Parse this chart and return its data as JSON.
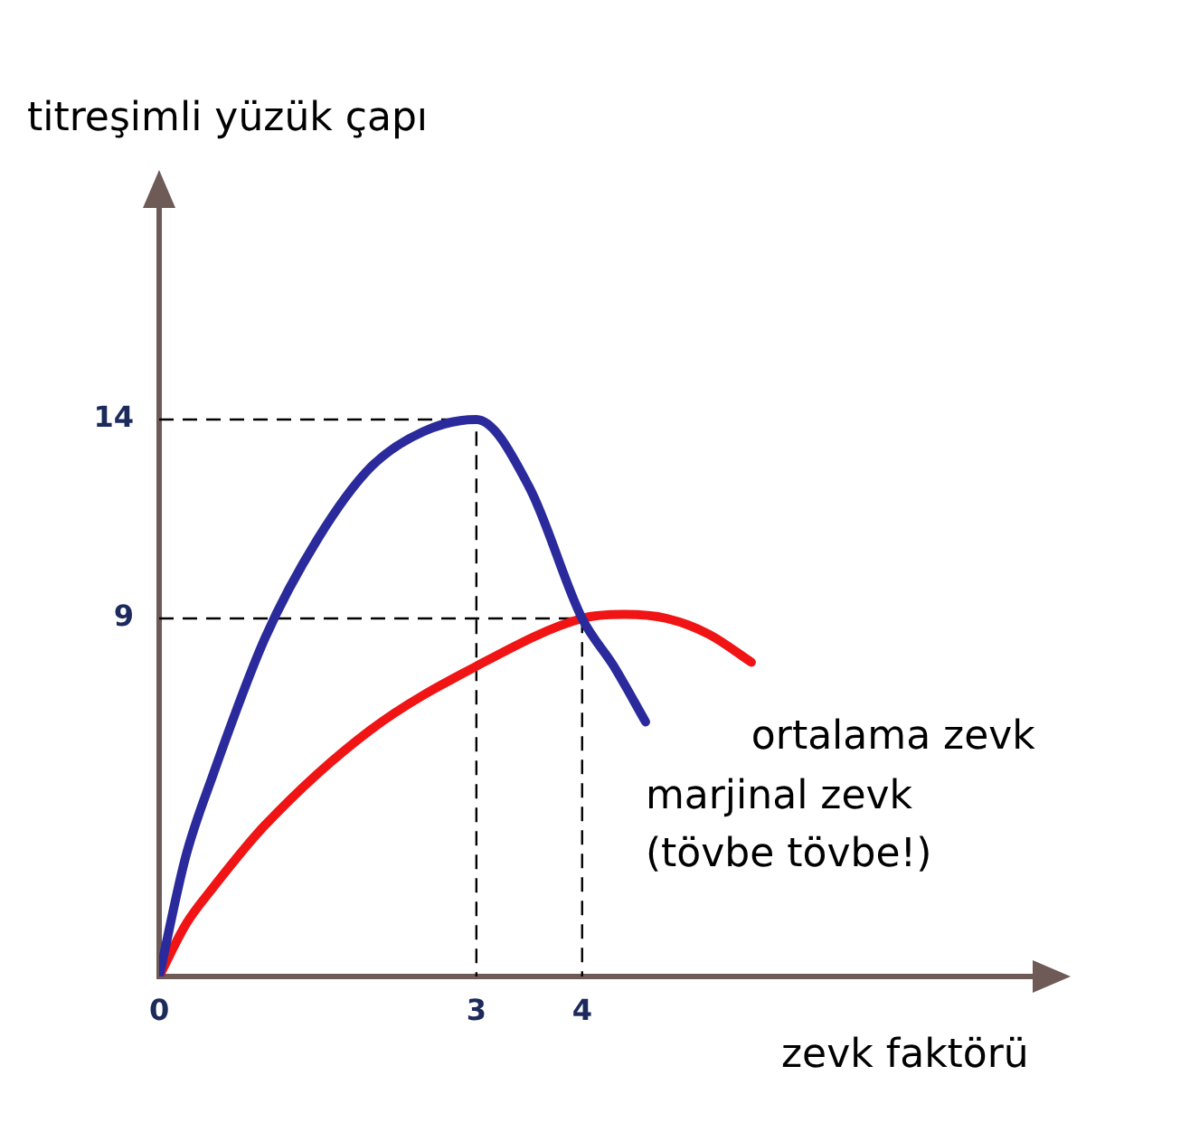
{
  "chart_data": {
    "type": "line",
    "xlabel": "zevk faktörü",
    "ylabel": "titreşimli yüzük çapı",
    "xlim": [
      0,
      8.5
    ],
    "ylim": [
      0,
      20
    ],
    "xticks": [
      0,
      3,
      4
    ],
    "yticks": [
      9,
      14
    ],
    "grid": false,
    "legend": false,
    "marker": "none",
    "series": [
      {
        "name": "marjinal zevk\n(tövbe tövbe!)",
        "color": "#2a2a9c",
        "x": [
          0,
          0.25,
          0.5,
          1,
          1.5,
          2,
          2.5,
          3,
          3.5,
          4,
          4.3,
          4.6
        ],
        "values": [
          0,
          3,
          5,
          8.5,
          11,
          12.8,
          13.7,
          14,
          12.3,
          9,
          7.8,
          6.4
        ]
      },
      {
        "name": "ortalama zevk",
        "color": "#f01414",
        "x": [
          0,
          0.25,
          0.5,
          1,
          2,
          3,
          4,
          4.4,
          4.8,
          5.2,
          5.6
        ],
        "values": [
          0,
          1.3,
          2.2,
          3.8,
          6.2,
          7.8,
          9,
          9.1,
          9,
          8.6,
          7.9
        ]
      },
      {
        "type": "line",
        "line_style": "dashed",
        "color": "#000000",
        "x": [
          0,
          3,
          3
        ],
        "values": [
          14,
          14,
          0
        ]
      },
      {
        "type": "line",
        "line_style": "dashed",
        "color": "#000000",
        "x": [
          0,
          4,
          4
        ],
        "values": [
          9,
          9,
          0
        ]
      }
    ]
  }
}
